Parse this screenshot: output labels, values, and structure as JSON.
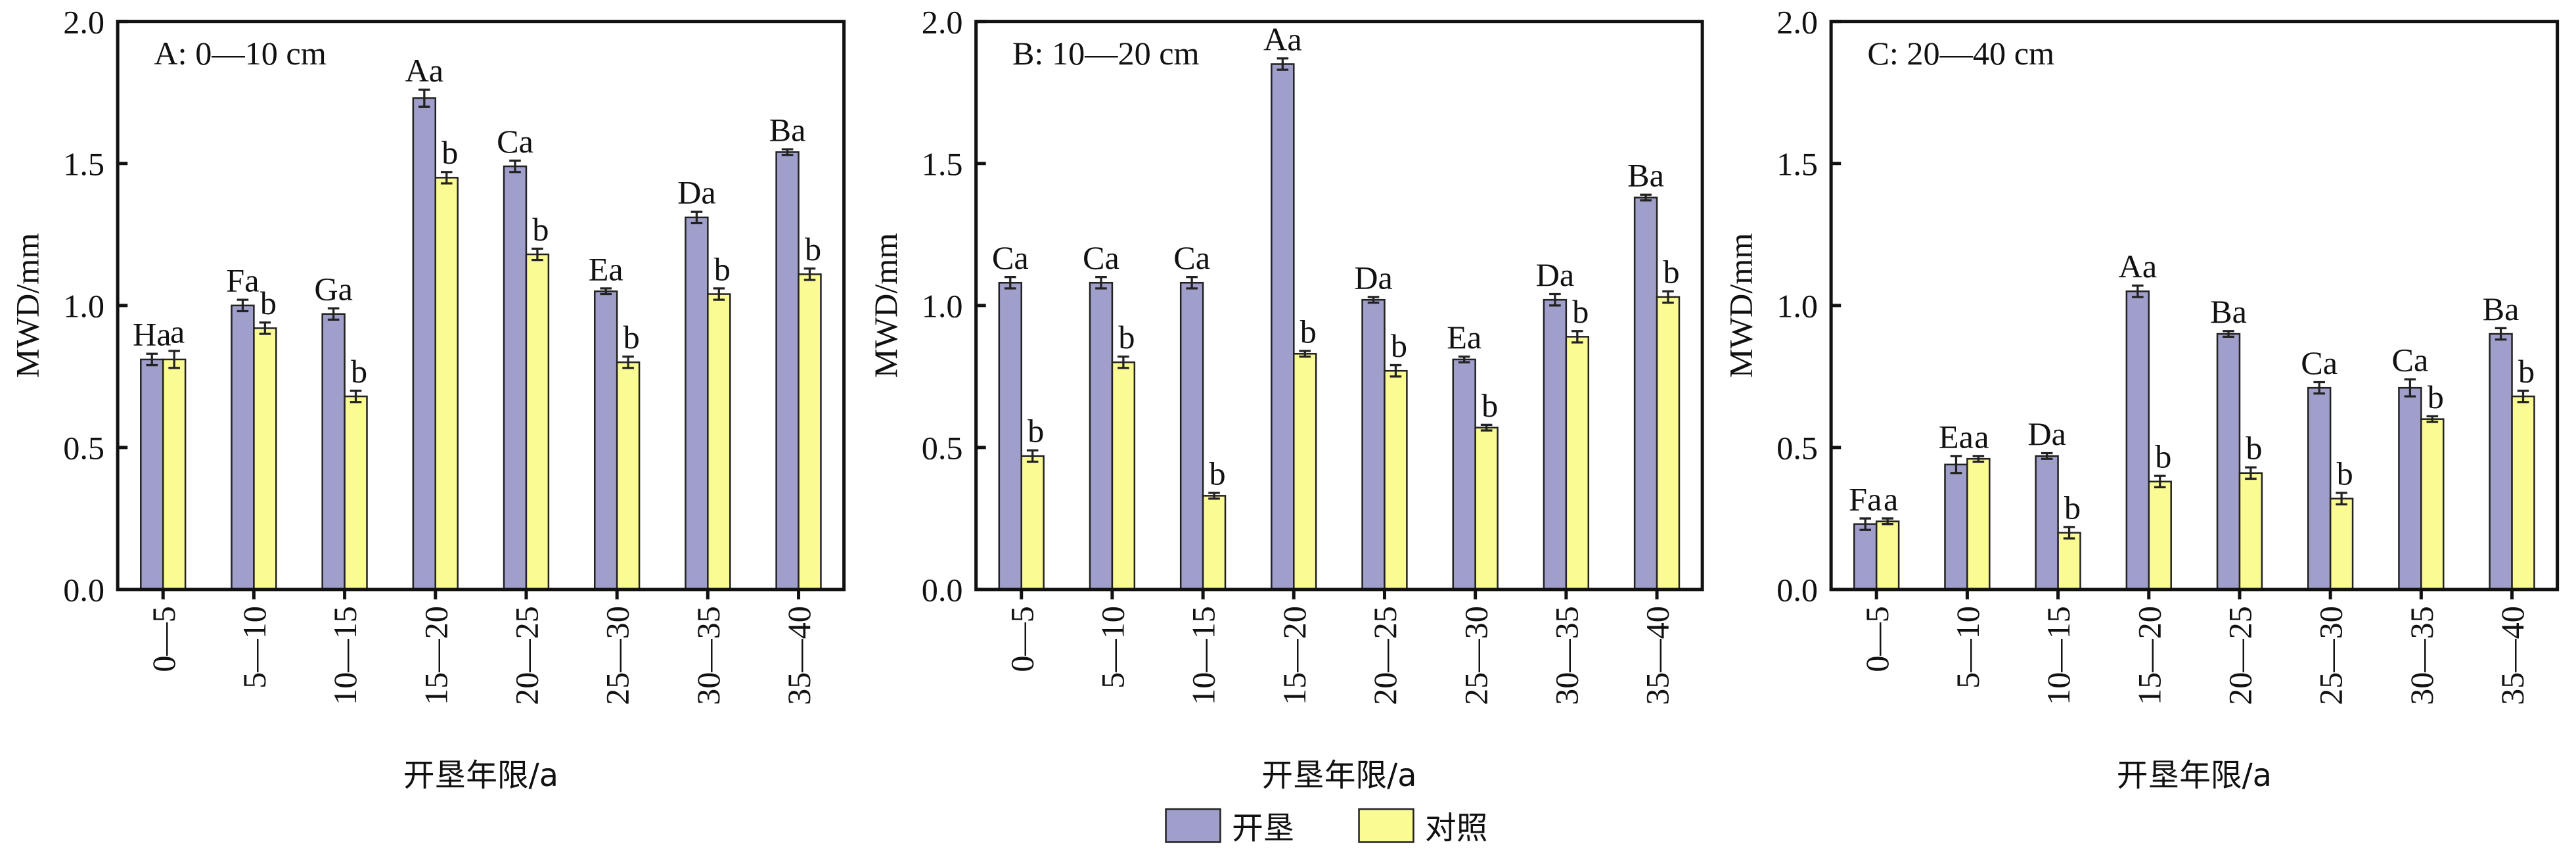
{
  "chart_data": [
    {
      "type": "bar",
      "title": "A: 0—10 cm",
      "y_label": "MWD/mm",
      "x_label": "开垦年限/a",
      "categories": [
        "0—5",
        "5—10",
        "10—15",
        "15—20",
        "20—25",
        "25—30",
        "30—35",
        "35—40"
      ],
      "ylim": [
        0,
        2
      ],
      "yticks": [
        {
          "value": 0,
          "label": "0.0"
        },
        {
          "value": 0.5,
          "label": "0.5"
        },
        {
          "value": 1,
          "label": "1.0"
        },
        {
          "value": 1.5,
          "label": "1.5"
        },
        {
          "value": 2,
          "label": "2.0"
        }
      ],
      "series": [
        {
          "name": "开垦",
          "color": "#a09fcb",
          "values": [
            0.81,
            1.0,
            0.97,
            1.73,
            1.49,
            1.05,
            1.31,
            1.54
          ],
          "errors": [
            0.02,
            0.02,
            0.02,
            0.03,
            0.02,
            0.01,
            0.02,
            0.01
          ],
          "labels": [
            "Ha",
            "Fa",
            "Ga",
            "Aa",
            "Ca",
            "Ea",
            "Da",
            "Ba"
          ]
        },
        {
          "name": "对照",
          "color": "#fbfb94",
          "values": [
            0.81,
            0.92,
            0.68,
            1.45,
            1.18,
            0.8,
            1.04,
            1.11
          ],
          "errors": [
            0.03,
            0.02,
            0.02,
            0.02,
            0.02,
            0.02,
            0.02,
            0.02
          ],
          "labels": [
            "a",
            "b",
            "b",
            "b",
            "b",
            "b",
            "b",
            "b"
          ]
        }
      ]
    },
    {
      "type": "bar",
      "title": "B: 10—20 cm",
      "y_label": "MWD/mm",
      "x_label": "开垦年限/a",
      "categories": [
        "0—5",
        "5—10",
        "10—15",
        "15—20",
        "20—25",
        "25—30",
        "30—35",
        "35—40"
      ],
      "ylim": [
        0,
        2
      ],
      "yticks": [
        {
          "value": 0,
          "label": "0.0"
        },
        {
          "value": 0.5,
          "label": "0.5"
        },
        {
          "value": 1,
          "label": "1.0"
        },
        {
          "value": 1.5,
          "label": "1.5"
        },
        {
          "value": 2,
          "label": "2.0"
        }
      ],
      "series": [
        {
          "name": "开垦",
          "color": "#a09fcb",
          "values": [
            1.08,
            1.08,
            1.08,
            1.85,
            1.02,
            0.81,
            1.02,
            1.38
          ],
          "errors": [
            0.02,
            0.02,
            0.02,
            0.02,
            0.01,
            0.01,
            0.02,
            0.01
          ],
          "labels": [
            "Ca",
            "Ca",
            "Ca",
            "Aa",
            "Da",
            "Ea",
            "Da",
            "Ba"
          ]
        },
        {
          "name": "对照",
          "color": "#fbfb94",
          "values": [
            0.47,
            0.8,
            0.33,
            0.83,
            0.77,
            0.57,
            0.89,
            1.03
          ],
          "errors": [
            0.02,
            0.02,
            0.01,
            0.01,
            0.02,
            0.01,
            0.02,
            0.02
          ],
          "labels": [
            "b",
            "b",
            "b",
            "b",
            "b",
            "b",
            "b",
            "b"
          ]
        }
      ]
    },
    {
      "type": "bar",
      "title": "C: 20—40 cm",
      "y_label": "MWD/mm",
      "x_label": "开垦年限/a",
      "categories": [
        "0—5",
        "5—10",
        "10—15",
        "15—20",
        "20—25",
        "25—30",
        "30—35",
        "35—40"
      ],
      "ylim": [
        0,
        2
      ],
      "yticks": [
        {
          "value": 0,
          "label": "0.0"
        },
        {
          "value": 0.5,
          "label": "0.5"
        },
        {
          "value": 1,
          "label": "1.0"
        },
        {
          "value": 1.5,
          "label": "1.5"
        },
        {
          "value": 2,
          "label": "2.0"
        }
      ],
      "series": [
        {
          "name": "开垦",
          "color": "#a09fcb",
          "values": [
            0.23,
            0.44,
            0.47,
            1.05,
            0.9,
            0.71,
            0.71,
            0.9
          ],
          "errors": [
            0.02,
            0.03,
            0.01,
            0.02,
            0.01,
            0.02,
            0.03,
            0.02
          ],
          "labels": [
            "Fa",
            "Ea",
            "Da",
            "Aa",
            "Ba",
            "Ca",
            "Ca",
            "Ba"
          ]
        },
        {
          "name": "对照",
          "color": "#fbfb94",
          "values": [
            0.24,
            0.46,
            0.2,
            0.38,
            0.41,
            0.32,
            0.6,
            0.68
          ],
          "errors": [
            0.01,
            0.01,
            0.02,
            0.02,
            0.02,
            0.02,
            0.01,
            0.02
          ],
          "labels": [
            "a",
            "a",
            "b",
            "b",
            "b",
            "b",
            "b",
            "b"
          ]
        }
      ]
    }
  ]
}
